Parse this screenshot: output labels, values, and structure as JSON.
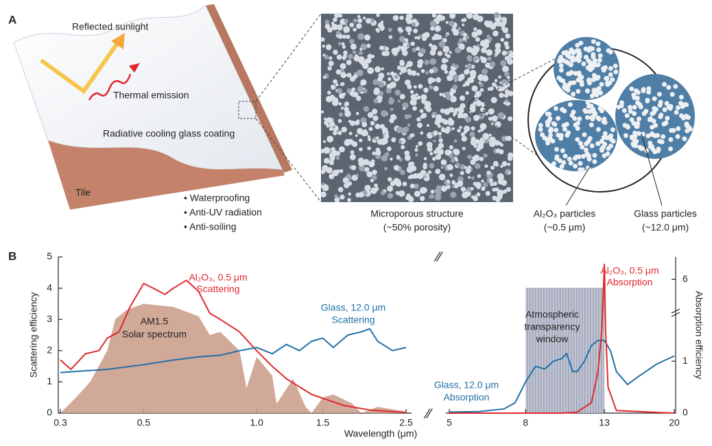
{
  "panel_a": {
    "label": "A",
    "reflected": "Reflected sunlight",
    "emission": "Thermal emission",
    "coating": "Radiative cooling glass coating",
    "tile": "Tile",
    "bullets": [
      "• Waterproofing",
      "• Anti-UV radiation",
      "• Anti-soiling"
    ],
    "micro": [
      "Microporous structure",
      "(~50% porosity)"
    ],
    "al2o3": [
      "Al₂O₃ particles",
      "(~0.5 μm)"
    ],
    "glass": [
      "Glass particles",
      "(~12.0 μm)"
    ]
  },
  "panel_b_label": "B",
  "chart_data": [
    {
      "type": "line",
      "ylabel": "Scattering efficiency",
      "xlabel": "Wavelength (μm)",
      "xscale": "log",
      "xlim": [
        0.3,
        2.5
      ],
      "xticks": [
        0.3,
        0.5,
        {
          "value": 1.0,
          "label": "1.0"
        },
        1.5,
        2.5
      ],
      "ylim": [
        0,
        5
      ],
      "yticks": [
        0,
        1,
        2,
        3,
        4,
        5
      ],
      "annotations": [
        "Al₂O₃, 0.5 μm",
        "Scattering",
        "AM1.5",
        "Solar spectrum",
        "Glass, 12.0 μm",
        "Scattering"
      ],
      "series": [
        {
          "kind": "area",
          "color": "#c99a86",
          "x": [
            0.3,
            0.33,
            0.36,
            0.4,
            0.42,
            0.45,
            0.5,
            0.6,
            0.7,
            0.75,
            0.8,
            0.9,
            0.94,
            1.0,
            1.1,
            1.13,
            1.25,
            1.35,
            1.4,
            1.5,
            1.6,
            1.8,
            1.9,
            2.1,
            2.5
          ],
          "values": [
            0,
            0.5,
            1.0,
            2.0,
            3.0,
            3.3,
            3.5,
            3.4,
            3.1,
            2.5,
            2.6,
            2.0,
            0.8,
            1.8,
            1.2,
            0.3,
            1.1,
            0.2,
            0,
            0.5,
            0.6,
            0.3,
            0,
            0.2,
            0.05
          ]
        },
        {
          "kind": "line",
          "color": "#e0282d",
          "x": [
            0.3,
            0.32,
            0.35,
            0.38,
            0.4,
            0.43,
            0.46,
            0.5,
            0.53,
            0.57,
            0.6,
            0.65,
            0.7,
            0.75,
            0.8,
            0.9,
            1.0,
            1.1,
            1.2,
            1.4,
            1.7,
            2.0,
            2.5
          ],
          "values": [
            1.7,
            1.4,
            1.9,
            2.0,
            2.4,
            2.6,
            3.4,
            4.15,
            4.0,
            3.8,
            4.0,
            4.25,
            3.9,
            3.2,
            3.0,
            2.6,
            2.0,
            1.5,
            1.1,
            0.6,
            0.25,
            0.1,
            0.02
          ]
        },
        {
          "kind": "line",
          "color": "#1f6fa8",
          "x": [
            0.3,
            0.4,
            0.5,
            0.6,
            0.7,
            0.8,
            0.9,
            1.0,
            1.1,
            1.2,
            1.3,
            1.4,
            1.5,
            1.6,
            1.75,
            1.9,
            2.0,
            2.1,
            2.3,
            2.5
          ],
          "values": [
            1.3,
            1.4,
            1.55,
            1.7,
            1.8,
            1.85,
            2.0,
            2.1,
            1.9,
            2.2,
            2.0,
            2.3,
            2.4,
            2.1,
            2.5,
            2.6,
            2.7,
            2.3,
            2.0,
            2.1
          ]
        }
      ]
    },
    {
      "type": "line",
      "y2label": "Absorption efficiency",
      "xscale": "log",
      "xlim": [
        5,
        20
      ],
      "xticks": [
        5,
        8,
        13,
        20
      ],
      "y2lim": [
        0,
        6.3
      ],
      "y2break": [
        1.9,
        5.6
      ],
      "y2ticks": [
        0,
        1,
        6
      ],
      "window": [
        8,
        13
      ],
      "annotations": [
        "Al₂O₃, 0.5 μm",
        "Absorption",
        "Atmospheric",
        "transparency",
        "window",
        "Glass, 12.0 μm",
        "Absorption"
      ],
      "series": [
        {
          "kind": "line",
          "axis": "y2",
          "color": "#1f6fa8",
          "x": [
            5,
            6,
            7,
            7.5,
            8,
            8.5,
            9,
            9.5,
            10,
            10.3,
            10.7,
            11,
            11.5,
            12,
            12.5,
            13,
            13.5,
            14,
            15,
            16,
            18,
            20
          ],
          "values": [
            0.02,
            0.03,
            0.08,
            0.2,
            0.6,
            0.9,
            0.85,
            1.0,
            1.05,
            1.15,
            0.8,
            0.8,
            1.0,
            1.3,
            1.4,
            1.4,
            1.2,
            0.8,
            0.55,
            0.7,
            0.95,
            1.1
          ]
        },
        {
          "kind": "line",
          "axis": "y2",
          "color": "#e0282d",
          "x": [
            5,
            10,
            11,
            12,
            12.5,
            12.8,
            13,
            13.1,
            13.3,
            14,
            20
          ],
          "values": [
            0,
            0,
            0.02,
            0.2,
            0.8,
            1.6,
            6.2,
            1.6,
            0.5,
            0.05,
            0
          ]
        }
      ]
    }
  ]
}
